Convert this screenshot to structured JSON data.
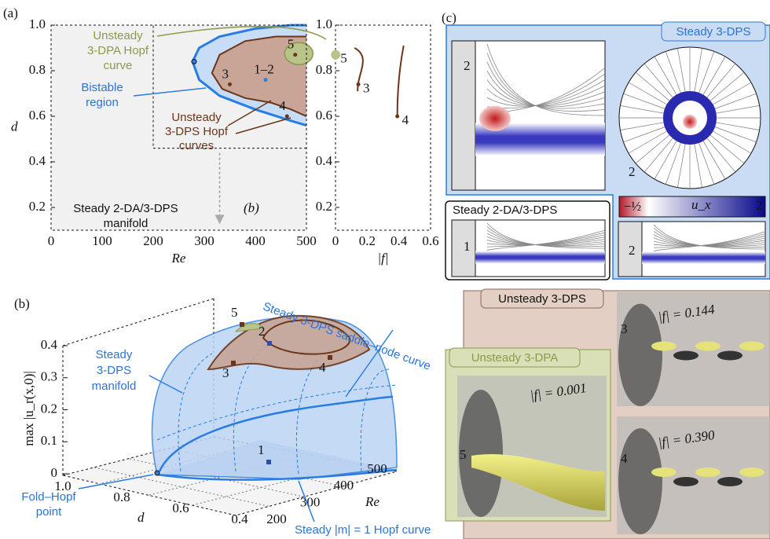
{
  "panel_a": {
    "label": "(a)",
    "xlabel": "Re",
    "ylabel": "d",
    "xlim": [
      0,
      500
    ],
    "xticks": [
      0,
      100,
      200,
      300,
      400,
      500
    ],
    "ylim": [
      0.1,
      1.0
    ],
    "yticks": [
      0.2,
      0.4,
      0.6,
      0.8,
      {
        "value": 1,
        "label": "1.0"
      }
    ],
    "points": [
      {
        "label": "3",
        "re": 350,
        "d": 0.74
      },
      {
        "label": "1–2",
        "re": 420,
        "d": 0.76
      },
      {
        "label": "4",
        "re": 462,
        "d": 0.6
      },
      {
        "label": "5",
        "re": 478,
        "d": 0.87
      }
    ],
    "fold_hopf": {
      "re": 280,
      "d": 0.84
    },
    "annotations": {
      "dpa_hopf": [
        "Unsteady",
        "3-DPA Hopf",
        "curve"
      ],
      "bistable": [
        "Bistable",
        "region"
      ],
      "dps_hopf": [
        "Unsteady",
        "3-DPS Hopf",
        "curves"
      ],
      "manifold": [
        "Steady 2-DA/3-DPS",
        "manifold"
      ],
      "to_b": "(b)"
    }
  },
  "panel_f": {
    "xlabel": "|f|",
    "xlim": [
      0,
      0.6
    ],
    "xticks": [
      0,
      0.2,
      0.4,
      0.6
    ],
    "ylim": [
      0.1,
      1.0
    ],
    "yticks": [
      0.2,
      0.4,
      0.6,
      0.8,
      {
        "value": 1,
        "label": "1.0"
      }
    ],
    "points": [
      {
        "label": "5",
        "f": 0.001,
        "d": 0.87
      },
      {
        "label": "3",
        "f": 0.144,
        "d": 0.74
      },
      {
        "label": "4",
        "f": 0.39,
        "d": 0.6
      }
    ]
  },
  "panel_b": {
    "label": "(b)",
    "zlabel": "max |u_r(x,0)|",
    "dlabel": "d",
    "relabel": "Re",
    "zticks": [
      0,
      0.1,
      0.2,
      0.3,
      0.4
    ],
    "dticks": [
      {
        "value": 1,
        "label": "1.0"
      },
      0.8,
      0.6,
      0.4
    ],
    "reticks": [
      200,
      300,
      400,
      500
    ],
    "points": [
      "1",
      "2",
      "3",
      "4",
      "5"
    ],
    "annotations": {
      "saddle": "Steady 3-DPS saddle–node curve",
      "manifold": [
        "Steady",
        "3-DPS",
        "manifold"
      ],
      "fold_hopf": [
        "Fold–Hopf",
        "point"
      ],
      "hopf": "Steady |m| = 1 Hopf curve"
    }
  },
  "panel_c": {
    "label": "(c)",
    "steady_3dps": "Steady 3-DPS",
    "steady_2da": "Steady 2-DA/3-DPS",
    "unsteady_3dps": "Unsteady 3-DPS",
    "unsteady_3dpa": "Unsteady 3-DPA",
    "colorbar": {
      "min": "−½",
      "var": "u_x",
      "max": "2"
    },
    "snapshots": [
      "2",
      "2",
      "1",
      "2",
      "3",
      "4",
      "5"
    ],
    "frequencies": [
      "|f| = 0.144",
      "|f| = 0.390",
      "|f| = 0.001"
    ]
  }
}
